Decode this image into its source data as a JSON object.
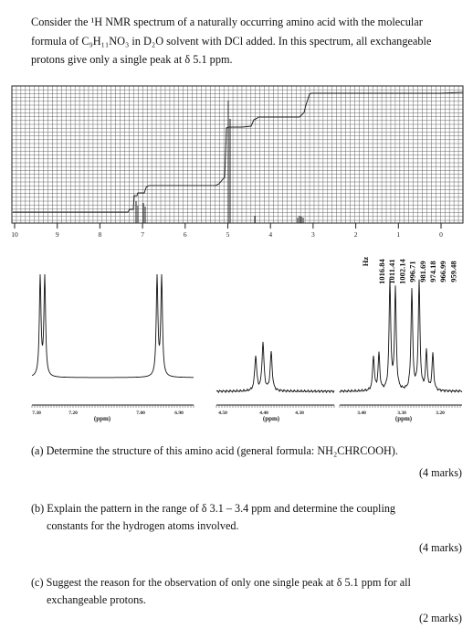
{
  "intro": {
    "line1": "Consider the ¹H NMR spectrum of a naturally occurring amino acid with the molecular",
    "line2": "formula of C₉H₁₁NO₃ in D₂O solvent with DCl added. In this spectrum, all exchangeable",
    "line3": "protons give only a single peak at δ 5.1 ppm."
  },
  "chart_data": {
    "type": "line",
    "x_axis_ticks": [
      "10",
      "9",
      "8",
      "7",
      "6",
      "5",
      "4",
      "3",
      "2",
      "1",
      "0"
    ],
    "expansions": [
      {
        "unit_label": "(ppm)",
        "ticks": [
          "7.30",
          "7.20",
          "7.00",
          "6.90"
        ]
      },
      {
        "unit_label": "(ppm)",
        "ticks": [
          "4.50",
          "4.40",
          "4.30"
        ]
      },
      {
        "unit_label": "(ppm)",
        "ticks": [
          "3.40",
          "3.30",
          "3.20"
        ],
        "peak_table_header": "Hz",
        "peak_list_hz": [
          "1016.84",
          "1011.41",
          "1002.14",
          "996.71",
          "981.69",
          "974.18",
          "966.99",
          "959.48"
        ]
      }
    ]
  },
  "questions": [
    {
      "text": "(a) Determine the structure of this amino acid (general formula: NH₂CHRCOOH).",
      "marks": "(4 marks)"
    },
    {
      "line1": "(b) Explain the pattern in the range of δ 3.1 – 3.4 ppm and determine the coupling",
      "line2": "constants for the hydrogen atoms involved.",
      "marks": "(4 marks)"
    },
    {
      "line1": "(c) Suggest the reason for the observation of only one single peak at δ 5.1 ppm for all",
      "line2": "exchangeable protons.",
      "marks": "(2 marks)"
    }
  ]
}
